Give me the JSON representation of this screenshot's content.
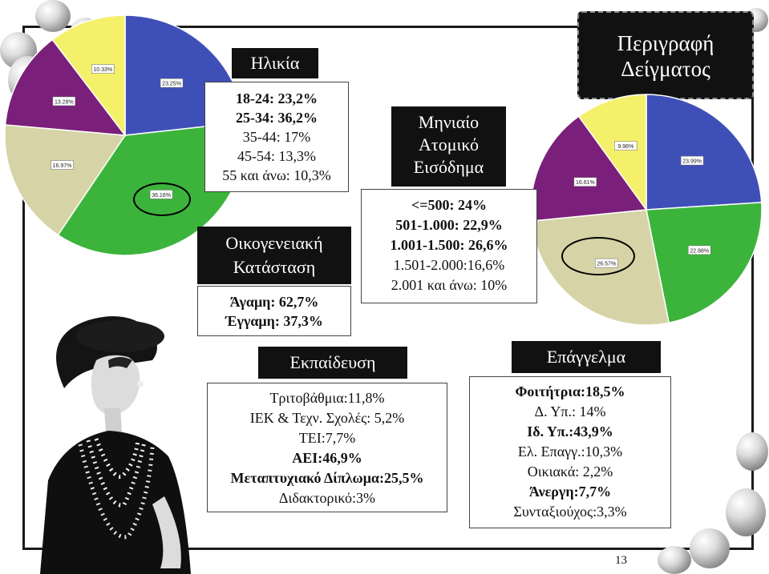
{
  "slide_title": {
    "line1": "Περιγραφή",
    "line2": "Δείγματος"
  },
  "age": {
    "title": "Ηλικία",
    "lines": [
      "18-24: 23,2%",
      "25-34: 36,2%",
      "35-44: 17%",
      "45-54: 13,3%",
      "55 και άνω: 10,3%"
    ]
  },
  "family": {
    "title_line1": "Οικογενειακή",
    "title_line2": "Κατάσταση",
    "lines": [
      "Άγαμη: 62,7%",
      "Έγγαμη: 37,3%"
    ]
  },
  "income": {
    "title_line1": "Μηνιαίο",
    "title_line2": "Ατομικό",
    "title_line3": "Εισόδημα",
    "lines": [
      "<=500: 24%",
      "501-1.000: 22,9%",
      "1.001-1.500: 26,6%",
      "1.501-2.000:16,6%",
      "2.001 και άνω: 10%"
    ]
  },
  "education": {
    "title": "Εκπαίδευση",
    "lines": [
      "Τριτοβάθμια:11,8%",
      "ΙΕΚ & Τεχν. Σχολές: 5,2%",
      "ΤΕΙ:7,7%",
      "ΑΕΙ:46,9%",
      "Μεταπτυχιακό Δίπλωμα:25,5%",
      "Διδακτορικό:3%"
    ]
  },
  "occupation": {
    "title": "Επάγγελμα",
    "lines": [
      "Φοιτήτρια:18,5%",
      "Δ. Υπ.: 14%",
      "Ιδ. Υπ.:43,9%",
      "Ελ. Επαγγ.:10,3%",
      "Οικιακά: 2,2%",
      "Άνεργη:7,7%",
      "Συνταξιούχος:3,3%"
    ]
  },
  "slide_number": "13",
  "colors": {
    "blue": "#3f4fb8",
    "green": "#3cb43c",
    "khaki": "#d6d4a6",
    "purple": "#7a1f7a",
    "yellow": "#f5f06a"
  },
  "chart_data": [
    {
      "type": "pie",
      "name": "age",
      "slices": [
        {
          "label": "23.25%",
          "value": 23.25,
          "color": "#3f4fb8"
        },
        {
          "label": "36.16%",
          "value": 36.16,
          "color": "#3cb43c"
        },
        {
          "label": "16.97%",
          "value": 16.97,
          "color": "#d6d4a6"
        },
        {
          "label": "13.28%",
          "value": 13.28,
          "color": "#7a1f7a"
        },
        {
          "label": "10.33%",
          "value": 10.33,
          "color": "#f5f06a"
        }
      ]
    },
    {
      "type": "pie",
      "name": "income",
      "slices": [
        {
          "label": "23.99%",
          "value": 23.99,
          "color": "#3f4fb8"
        },
        {
          "label": "22.88%",
          "value": 22.88,
          "color": "#3cb43c"
        },
        {
          "label": "26.57%",
          "value": 26.57,
          "color": "#d6d4a6"
        },
        {
          "label": "16.61%",
          "value": 16.61,
          "color": "#7a1f7a"
        },
        {
          "label": "9.96%",
          "value": 9.96,
          "color": "#f5f06a"
        }
      ]
    }
  ]
}
